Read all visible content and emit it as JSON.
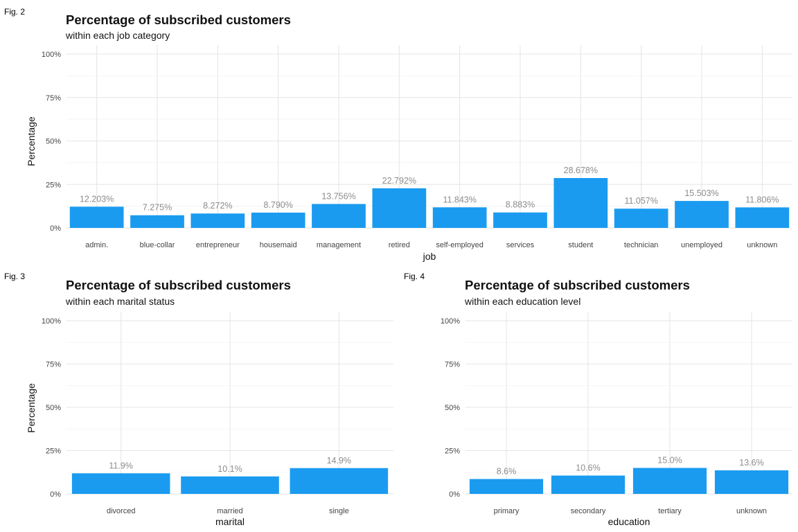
{
  "chart_data": [
    {
      "figure_label": "Fig. 2",
      "type": "bar",
      "title": "Percentage of subscribed customers",
      "subtitle": "within each job category",
      "xlabel": "job",
      "ylabel": "Percentage",
      "ylim": [
        0,
        100
      ],
      "yticks": [
        "0%",
        "25%",
        "50%",
        "75%",
        "100%"
      ],
      "bar_color": "#1a9bf0",
      "categories": [
        "admin.",
        "blue-collar",
        "entrepreneur",
        "housemaid",
        "management",
        "retired",
        "self-employed",
        "services",
        "student",
        "technician",
        "unemployed",
        "unknown"
      ],
      "values": [
        12.203,
        7.275,
        8.272,
        8.79,
        13.756,
        22.792,
        11.843,
        8.883,
        28.678,
        11.057,
        15.503,
        11.806
      ],
      "labels": [
        "12.203%",
        "7.275%",
        "8.272%",
        "8.790%",
        "13.756%",
        "22.792%",
        "11.843%",
        "8.883%",
        "28.678%",
        "11.057%",
        "15.503%",
        "11.806%"
      ]
    },
    {
      "figure_label": "Fig. 3",
      "type": "bar",
      "title": "Percentage of subscribed customers",
      "subtitle": "within each marital status",
      "xlabel": "marital",
      "ylabel": "Percentage",
      "ylim": [
        0,
        100
      ],
      "yticks": [
        "0%",
        "25%",
        "50%",
        "75%",
        "100%"
      ],
      "bar_color": "#1a9bf0",
      "categories": [
        "divorced",
        "married",
        "single"
      ],
      "values": [
        11.9,
        10.1,
        14.9
      ],
      "labels": [
        "11.9%",
        "10.1%",
        "14.9%"
      ]
    },
    {
      "figure_label": "Fig. 4",
      "type": "bar",
      "title": "Percentage of subscribed customers",
      "subtitle": "within each education level",
      "xlabel": "education",
      "ylabel": "",
      "ylim": [
        0,
        100
      ],
      "yticks": [
        "0%",
        "25%",
        "50%",
        "75%",
        "100%"
      ],
      "bar_color": "#1a9bf0",
      "categories": [
        "primary",
        "secondary",
        "tertiary",
        "unknown"
      ],
      "values": [
        8.6,
        10.6,
        15.0,
        13.6
      ],
      "labels": [
        "8.6%",
        "10.6%",
        "15.0%",
        "13.6%"
      ]
    }
  ]
}
